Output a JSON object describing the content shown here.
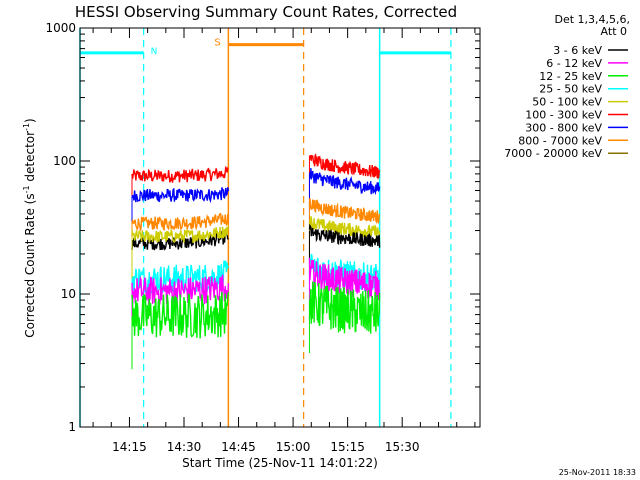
{
  "chart_data": {
    "type": "line",
    "title": "HESSI Observing Summary Count Rates, Corrected",
    "xlabel": "Start Time (25-Nov-11 14:01:22)",
    "ylabel_main": "Corrected Count Rate (s",
    "ylabel_sup1": "-1",
    "ylabel_mid": " detector",
    "ylabel_sup2": "-1",
    "ylabel_end": ")",
    "yscale": "log",
    "ylim": [
      1,
      1000
    ],
    "xlim": [
      0,
      110
    ],
    "x_unit": "minutes since 14:01:22",
    "yticks": [
      "1",
      "10",
      "100",
      "1000"
    ],
    "xticks": [
      {
        "label": "14:15",
        "x": 13.6
      },
      {
        "label": "14:30",
        "x": 28.6
      },
      {
        "label": "14:45",
        "x": 43.6
      },
      {
        "label": "15:00",
        "x": 58.6
      },
      {
        "label": "15:15",
        "x": 73.6
      },
      {
        "label": "15:30",
        "x": 88.6
      }
    ],
    "grid": false,
    "legend": {
      "placement": "right",
      "header1": "Det 1,3,4,5,6,",
      "header2": "Att 0",
      "entries": [
        {
          "label": "3 - 6 keV",
          "color": "#000000"
        },
        {
          "label": "6 - 12 keV",
          "color": "#ff00ff"
        },
        {
          "label": "12 - 25 keV",
          "color": "#00ee00"
        },
        {
          "label": "25 - 50 keV",
          "color": "#00ffff"
        },
        {
          "label": "50 - 100 keV",
          "color": "#cccc00"
        },
        {
          "label": "100 - 300 keV",
          "color": "#ff0000"
        },
        {
          "label": "300 - 800 keV",
          "color": "#0000ff"
        },
        {
          "label": "800 - 7000 keV",
          "color": "#ff8800"
        },
        {
          "label": "7000 - 20000 keV",
          "color": "#8b7300"
        }
      ]
    },
    "segments": [
      {
        "x_start": 14.3,
        "x_end": 40.8,
        "series": [
          {
            "band": "100 - 300 keV",
            "start": 77,
            "end": 82
          },
          {
            "band": "300 - 800 keV",
            "start": 55,
            "end": 57
          },
          {
            "band": "800 - 7000 keV",
            "start": 34,
            "end": 37
          },
          {
            "band": "3 - 6 keV",
            "start": 24,
            "end": 27
          },
          {
            "band": "50 - 100 keV",
            "start": 27,
            "end": 30
          },
          {
            "band": "25 - 50 keV",
            "start": 13,
            "end": 14
          },
          {
            "band": "6 - 12 keV",
            "start": 10.5,
            "end": 11.5
          },
          {
            "band": "12 - 25 keV",
            "start": 6.8,
            "end": 7.2
          }
        ]
      },
      {
        "x_start": 63.1,
        "x_end": 82.4,
        "series": [
          {
            "band": "100 - 300 keV",
            "start": 110,
            "end": 82
          },
          {
            "band": "300 - 800 keV",
            "start": 82,
            "end": 62
          },
          {
            "band": "800 - 7000 keV",
            "start": 50,
            "end": 38
          },
          {
            "band": "50 - 100 keV",
            "start": 36,
            "end": 29
          },
          {
            "band": "3 - 6 keV",
            "start": 30,
            "end": 25
          },
          {
            "band": "25 - 50 keV",
            "start": 17,
            "end": 13
          },
          {
            "band": "6 - 12 keV",
            "start": 15,
            "end": 11.5
          },
          {
            "band": "12 - 25 keV",
            "start": 9,
            "end": 7
          }
        ]
      }
    ],
    "annotations": {
      "night_color": "#00ffff",
      "saa_color": "#ff8800",
      "night_label": "N",
      "saa_label": "S",
      "night_level": 650,
      "saa_level": 750,
      "night_bars": [
        [
          0,
          17.5
        ],
        [
          82.4,
          102
        ]
      ],
      "saa_bar": [
        40.8,
        61.5
      ],
      "night_solid_lines": [
        0,
        82.4
      ],
      "night_dashed_lines": [
        17.5,
        102
      ],
      "saa_solid_lines": [
        40.8
      ],
      "saa_dashed_lines": [
        61.5
      ]
    },
    "stamp": "25-Nov-2011 18:33"
  }
}
